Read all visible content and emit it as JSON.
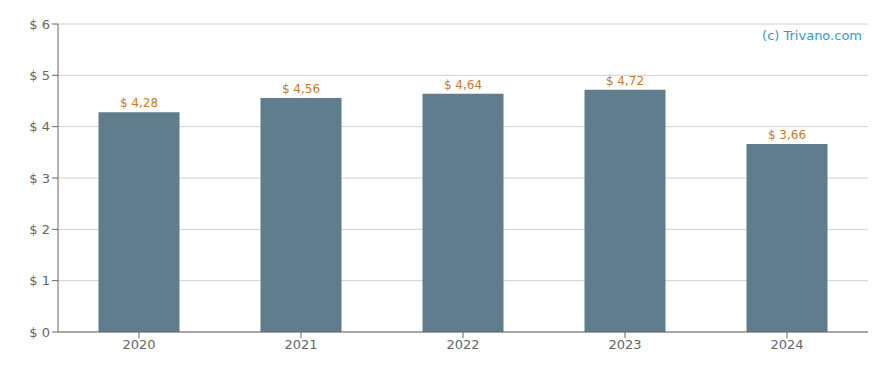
{
  "chart_data": {
    "type": "bar",
    "categories": [
      "2020",
      "2021",
      "2022",
      "2023",
      "2024"
    ],
    "values": [
      4.28,
      4.56,
      4.64,
      4.72,
      3.66
    ],
    "value_labels": [
      "$ 4,28",
      "$ 4,56",
      "$ 4,64",
      "$ 4,72",
      "$ 3,66"
    ],
    "color": "#5f7d8c",
    "ylim": [
      0,
      6
    ],
    "yticks": [
      {
        "value": 0,
        "label": "$ 0"
      },
      {
        "value": 1,
        "label": "$ 1"
      },
      {
        "value": 2,
        "label": "$ 2"
      },
      {
        "value": 3,
        "label": "$ 3"
      },
      {
        "value": 4,
        "label": "$ 4"
      },
      {
        "value": 5,
        "label": "$ 5"
      },
      {
        "value": 6,
        "label": "$ 6"
      }
    ],
    "grid": true,
    "data_labels": true,
    "annotation": "(c) Trivano.com"
  }
}
